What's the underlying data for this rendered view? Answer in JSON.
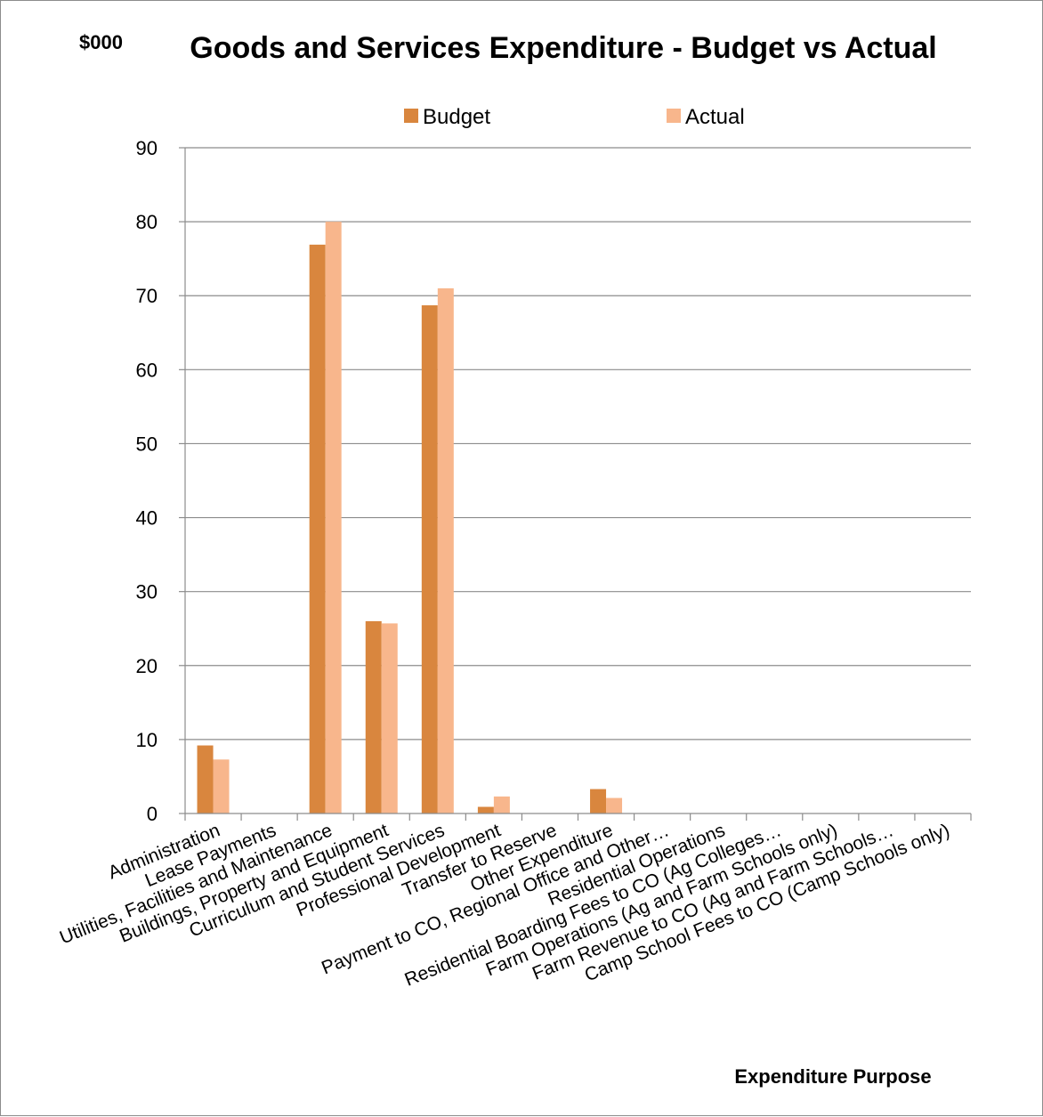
{
  "chart_data": {
    "type": "bar",
    "title": "Goods and Services Expenditure - Budget vs Actual",
    "unit_label": "$000",
    "xlabel": "Expenditure Purpose",
    "ylabel": "",
    "ylim": [
      0,
      90
    ],
    "yticks": [
      0,
      10,
      20,
      30,
      40,
      50,
      60,
      70,
      80,
      90
    ],
    "grid": true,
    "legend_position": "top",
    "categories": [
      "Administration",
      "Lease Payments",
      "Utilities, Facilities and Maintenance",
      "Buildings, Property and Equipment",
      "Curriculum and Student Services",
      "Professional Development",
      "Transfer to Reserve",
      "Other Expenditure",
      "Payment to CO, Regional Office and Other…",
      "Residential Operations",
      "Residential Boarding Fees to CO (Ag Colleges…",
      "Farm Operations (Ag and Farm Schools only)",
      "Farm Revenue to CO (Ag and Farm Schools…",
      "Camp School Fees to CO (Camp Schools only)"
    ],
    "series": [
      {
        "name": "Budget",
        "color": "#D9863E",
        "values": [
          9.2,
          0,
          76.9,
          26.0,
          68.7,
          0.9,
          0,
          3.3,
          0,
          0,
          0,
          0,
          0,
          0
        ]
      },
      {
        "name": "Actual",
        "color": "#F8B68C",
        "values": [
          7.3,
          0,
          80.0,
          25.7,
          71.0,
          2.3,
          0,
          2.1,
          0,
          0,
          0,
          0,
          0,
          0
        ]
      }
    ]
  }
}
